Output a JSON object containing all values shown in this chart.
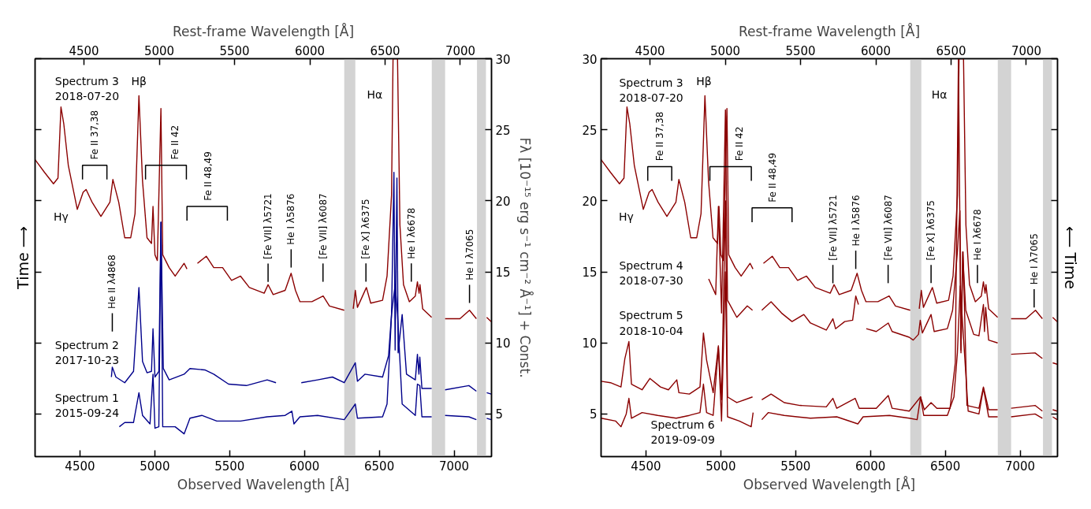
{
  "chart_data": [
    {
      "type": "line",
      "xlabel": "Observed Wavelength [Å]",
      "x2label": "Rest-frame Wavelength [Å]",
      "ylabel": "Fλ [10⁻¹⁵ erg s⁻¹ cm⁻² Å⁻¹] + Const.",
      "xlim": [
        4200,
        7250
      ],
      "xticks": [
        4500,
        5000,
        5500,
        6000,
        6500,
        7000
      ],
      "x2lim": [
        4175,
        7207
      ],
      "x2ticks": [
        4500,
        5000,
        5500,
        6000,
        6500,
        7000
      ],
      "ylim": [
        2,
        30
      ],
      "yticks": [
        5,
        10,
        15,
        20,
        25,
        30
      ],
      "series": [
        {
          "color": "#8b0000",
          "x": [
            4200,
            4263,
            4323,
            4353,
            4373,
            4392,
            4422,
            4482,
            4521,
            4541,
            4581,
            4640,
            4700,
            4720,
            4759,
            4799,
            4839,
            4868,
            4894,
            4918,
            4948,
            4978,
            4988,
            5001,
            5017,
            5041,
            5053,
            5096,
            5136,
            5196,
            5215,
            5250,
            5285,
            5344,
            5394,
            5453,
            5513,
            5573,
            5632,
            5731,
            5757,
            5791,
            5871,
            5911,
            5940,
            5970,
            6050,
            6125,
            6167,
            6266,
            6300,
            6326,
            6340,
            6354,
            6414,
            6443,
            6522,
            6552,
            6582,
            6592,
            6622,
            6638,
            6662,
            6701,
            6741,
            6755,
            6766,
            6772,
            6790,
            6850,
            6900,
            6940,
            7039,
            7103,
            7149,
            7180,
            7218,
            7248
          ],
          "values": [
            22.9,
            22.0,
            21.2,
            21.6,
            26.6,
            25.4,
            22.5,
            19.4,
            20.6,
            20.8,
            19.9,
            18.9,
            19.9,
            21.5,
            19.9,
            17.4,
            17.4,
            19.1,
            27.4,
            21.4,
            17.4,
            17.0,
            19.6,
            16.2,
            15.8,
            26.5,
            16.2,
            15.3,
            14.7,
            15.6,
            15.2,
            null,
            15.6,
            16.1,
            15.3,
            15.3,
            14.4,
            14.7,
            13.9,
            13.5,
            14.1,
            13.4,
            13.7,
            14.9,
            13.7,
            12.9,
            12.9,
            13.3,
            12.6,
            12.3,
            null,
            12.4,
            13.7,
            12.5,
            13.9,
            12.8,
            13.0,
            14.7,
            20.4,
            30,
            30,
            18.3,
            14.1,
            12.9,
            13.3,
            14.3,
            13.5,
            14.1,
            12.4,
            11.8,
            null,
            11.7,
            11.7,
            12.3,
            11.7,
            null,
            11.8,
            11.5
          ]
        },
        {
          "color": "#00008b",
          "x": [
            4710,
            4716,
            4740,
            4799,
            4858,
            4894,
            4918,
            4948,
            4978,
            4988,
            5001,
            5027,
            5041,
            5057,
            5096,
            5196,
            5235,
            5334,
            5394,
            5493,
            5612,
            5751,
            5810,
            5900,
            5979,
            6088,
            6187,
            6266,
            6340,
            6354,
            6404,
            6522,
            6562,
            6582,
            6598,
            6606,
            6618,
            6626,
            6653,
            6682,
            6741,
            6755,
            6765,
            6771,
            6785,
            6850,
            6900,
            6940,
            7099,
            7149,
            7180,
            7218,
            7248
          ],
          "values": [
            7.6,
            8.3,
            7.6,
            7.2,
            8.0,
            13.9,
            8.7,
            7.9,
            8.0,
            11.0,
            7.6,
            8.0,
            18.5,
            8.2,
            7.4,
            7.8,
            8.2,
            8.1,
            7.8,
            7.1,
            7.0,
            7.4,
            7.2,
            null,
            7.2,
            7.4,
            7.6,
            7.2,
            8.6,
            7.3,
            7.8,
            7.6,
            9.1,
            12.0,
            22.0,
            9.5,
            21.6,
            9.3,
            12.0,
            7.8,
            7.4,
            9.2,
            7.8,
            9.0,
            6.8,
            6.8,
            null,
            6.7,
            7.0,
            6.6,
            null,
            6.5,
            6.4
          ]
        },
        {
          "color": "#00008b",
          "x": [
            4763,
            4799,
            4858,
            4894,
            4918,
            4968,
            4988,
            5001,
            5027,
            5041,
            5053,
            5136,
            5196,
            5235,
            5314,
            5414,
            5573,
            5751,
            5871,
            5916,
            5930,
            5970,
            6088,
            6266,
            6340,
            6354,
            6522,
            6552,
            6582,
            6606,
            6622,
            6653,
            6741,
            6755,
            6771,
            6785,
            6850,
            6900,
            6940,
            7099,
            7149,
            7180,
            7218,
            7248
          ],
          "values": [
            4.1,
            4.4,
            4.4,
            6.5,
            4.9,
            4.3,
            7.8,
            4.0,
            4.1,
            18.5,
            4.1,
            4.1,
            3.6,
            4.7,
            4.9,
            4.5,
            4.5,
            4.8,
            4.9,
            5.2,
            4.3,
            4.8,
            4.9,
            4.6,
            5.7,
            4.7,
            4.8,
            5.7,
            12.0,
            14.1,
            12.0,
            5.7,
            4.9,
            7.1,
            7.0,
            4.8,
            4.8,
            null,
            4.9,
            4.8,
            4.6,
            null,
            4.7,
            4.6
          ]
        }
      ],
      "bands": [
        {
          "axis": "x",
          "from": 6266,
          "to": 6340,
          "color": "#d3d3d3"
        },
        {
          "axis": "x",
          "from": 6851,
          "to": 6940,
          "color": "#d3d3d3"
        },
        {
          "axis": "x",
          "from": 7153,
          "to": 7213,
          "color": "#d3d3d3"
        }
      ],
      "annotations": [
        "Time ⟶",
        "Spectrum 3\n2018-07-20",
        "Spectrum 2\n2017-10-23",
        "Spectrum 1\n2015-09-24",
        "Hβ",
        "Hγ",
        "Hα",
        "Fe II 37,38",
        "Fe II 42",
        "Fe II 48,49",
        "He II λ4868",
        {
          "text": "[Fe VII] λ5721",
          "x": 5757,
          "y": 14.3
        },
        "He I λ5876",
        "[Fe VII] λ6087",
        "[Fe X] λ6375",
        "He I λ6678",
        "He I λ7065"
      ]
    },
    {
      "type": "line",
      "xlabel": "Observed Wavelength [Å]",
      "x2label": "Rest-frame Wavelength [Å]",
      "xlim": [
        4200,
        7250
      ],
      "xticks": [
        4500,
        5000,
        5500,
        6000,
        6500,
        7000
      ],
      "x2lim": [
        4175,
        7207
      ],
      "x2ticks": [
        4500,
        5000,
        5500,
        6000,
        6500,
        7000
      ],
      "ylim": [
        2,
        30
      ],
      "yticks": [
        5,
        10,
        15,
        20,
        25,
        30
      ],
      "series": [
        {
          "color": "#8b0000",
          "x": [
            4200,
            4263,
            4323,
            4353,
            4373,
            4392,
            4422,
            4482,
            4521,
            4541,
            4581,
            4640,
            4700,
            4720,
            4759,
            4799,
            4839,
            4868,
            4894,
            4918,
            4948,
            4978,
            4988,
            5001,
            5017,
            5041,
            5053,
            5096,
            5136,
            5196,
            5215,
            5250,
            5285,
            5344,
            5394,
            5453,
            5513,
            5573,
            5632,
            5731,
            5757,
            5791,
            5871,
            5911,
            5940,
            5970,
            6050,
            6125,
            6167,
            6266,
            6300,
            6326,
            6340,
            6354,
            6414,
            6443,
            6522,
            6552,
            6582,
            6592,
            6622,
            6638,
            6662,
            6701,
            6741,
            6755,
            6766,
            6772,
            6790,
            6850,
            6900,
            6940,
            7039,
            7103,
            7149,
            7180,
            7218,
            7248
          ],
          "values": [
            22.9,
            22.0,
            21.2,
            21.6,
            26.6,
            25.4,
            22.5,
            19.4,
            20.6,
            20.8,
            19.9,
            18.9,
            19.9,
            21.5,
            19.9,
            17.4,
            17.4,
            19.1,
            27.4,
            21.4,
            17.4,
            17.0,
            19.6,
            16.2,
            15.8,
            26.5,
            16.2,
            15.3,
            14.7,
            15.6,
            15.2,
            null,
            15.6,
            16.1,
            15.3,
            15.3,
            14.4,
            14.7,
            13.9,
            13.5,
            14.1,
            13.4,
            13.7,
            14.9,
            13.7,
            12.9,
            12.9,
            13.3,
            12.6,
            12.3,
            null,
            12.4,
            13.7,
            12.5,
            13.9,
            12.8,
            13.0,
            14.7,
            20.4,
            30,
            30,
            18.3,
            14.1,
            12.9,
            13.3,
            14.3,
            13.5,
            14.1,
            12.4,
            11.8,
            null,
            11.7,
            11.7,
            12.3,
            11.7,
            null,
            11.8,
            11.5
          ]
        },
        {
          "color": "#8b0000",
          "x": [
            4919,
            4966,
            4984,
            5005,
            5031,
            5045,
            5107,
            5177,
            5212,
            5240,
            5274,
            5336,
            5406,
            5476,
            5555,
            5599,
            5705,
            5749,
            5767,
            5828,
            5881,
            5902,
            5920,
            5945,
            5972,
            6039,
            6119,
            6145,
            6259,
            6286,
            6321,
            6333,
            6347,
            6405,
            6426,
            6514,
            6549,
            6581,
            6598,
            6605,
            6616,
            6637,
            6690,
            6725,
            6755,
            6762,
            6770,
            6790,
            6850,
            6900,
            6940,
            7100,
            7149,
            7180,
            7218,
            7248
          ],
          "values": [
            14.5,
            13.4,
            19.6,
            12.1,
            26.4,
            13.0,
            11.8,
            12.6,
            12.3,
            null,
            12.3,
            12.9,
            12.1,
            11.5,
            12.0,
            11.4,
            10.9,
            11.7,
            11.0,
            11.5,
            11.6,
            13.3,
            12.7,
            null,
            11.0,
            10.8,
            11.4,
            10.8,
            10.4,
            10.2,
            10.6,
            11.6,
            10.7,
            12.0,
            10.8,
            11.0,
            12.3,
            16.4,
            19.3,
            9.3,
            16.4,
            12.3,
            10.6,
            10.5,
            12.7,
            10.8,
            12.5,
            10.2,
            10.0,
            null,
            9.2,
            9.3,
            8.9,
            null,
            8.6,
            8.5
          ]
        },
        {
          "color": "#8b0000",
          "x": [
            4200,
            4263,
            4333,
            4359,
            4386,
            4403,
            4474,
            4526,
            4597,
            4650,
            4706,
            4720,
            4790,
            4861,
            4884,
            4905,
            4949,
            4984,
            5005,
            5031,
            5045,
            5107,
            5212,
            5240,
            5274,
            5336,
            5424,
            5529,
            5705,
            5749,
            5775,
            5898,
            5925,
            6039,
            6119,
            6145,
            6259,
            6335,
            6360,
            6405,
            6444,
            6532,
            6567,
            6588,
            6605,
            6619,
            6645,
            6725,
            6755,
            6790,
            6850,
            6900,
            6940,
            7100,
            7149,
            7180,
            7218,
            7248
          ],
          "values": [
            7.3,
            7.2,
            6.9,
            8.9,
            10.1,
            7.1,
            6.7,
            7.5,
            6.9,
            6.7,
            7.4,
            6.5,
            6.4,
            6.9,
            10.7,
            8.8,
            6.5,
            9.8,
            6.0,
            20.0,
            6.2,
            5.8,
            6.2,
            null,
            6.0,
            6.4,
            5.8,
            5.6,
            5.5,
            6.1,
            5.4,
            6.1,
            5.4,
            5.4,
            6.3,
            5.4,
            5.2,
            6.2,
            5.3,
            5.8,
            5.4,
            5.4,
            8.6,
            30,
            9.5,
            16.4,
            5.6,
            5.4,
            6.9,
            5.3,
            5.3,
            null,
            5.4,
            5.6,
            5.2,
            null,
            5.3,
            5.2
          ]
        },
        {
          "color": "#8b0000",
          "x": [
            4200,
            4298,
            4333,
            4368,
            4386,
            4403,
            4474,
            4579,
            4702,
            4790,
            4861,
            4884,
            4905,
            4949,
            4984,
            5005,
            5031,
            5045,
            5124,
            5203,
            5216,
            5245,
            5274,
            5318,
            5424,
            5599,
            5775,
            5916,
            5951,
            6127,
            6259,
            6312,
            6335,
            6356,
            6514,
            6558,
            6581,
            6600,
            6653,
            6725,
            6755,
            6790,
            6850,
            6900,
            6940,
            7100,
            7149,
            7180,
            7218,
            7248
          ],
          "values": [
            4.7,
            4.5,
            4.1,
            5.0,
            6.1,
            4.7,
            5.1,
            4.9,
            4.7,
            4.9,
            5.1,
            7.1,
            5.1,
            4.9,
            9.7,
            4.5,
            15.0,
            4.8,
            4.5,
            4.1,
            5.1,
            null,
            4.6,
            5.1,
            4.9,
            4.7,
            4.8,
            4.3,
            4.8,
            4.9,
            4.7,
            4.6,
            6.2,
            4.9,
            4.9,
            6.2,
            9.3,
            14.0,
            5.2,
            5.0,
            6.8,
            4.8,
            4.8,
            null,
            4.8,
            5.0,
            4.7,
            null,
            4.8,
            4.6
          ]
        }
      ],
      "bands": [
        {
          "axis": "x",
          "from": 6266,
          "to": 6340,
          "color": "#d3d3d3"
        },
        {
          "axis": "x",
          "from": 6851,
          "to": 6940,
          "color": "#d3d3d3"
        },
        {
          "axis": "x",
          "from": 7153,
          "to": 7213,
          "color": "#d3d3d3"
        }
      ],
      "annotations": [
        "⟵ Time",
        "Spectrum 3\n2018-07-20",
        "Spectrum 4\n2018-07-30",
        "Spectrum 5\n2018-10-04",
        "Spectrum 6\n2019-09-09",
        "Hβ",
        "Hγ",
        "Hα",
        "Fe II 37,38",
        "Fe II 42",
        "Fe II 48,49",
        {
          "text": "[Fe VII] λ5721",
          "x": 5749,
          "y": 14.2
        },
        "He I λ5876",
        "[Fe VII] λ6087",
        "[Fe X] λ6375",
        "He I λ6678",
        {
          "text": "He I λ7065",
          "x": 7094,
          "y": 12.5
        }
      ]
    }
  ]
}
